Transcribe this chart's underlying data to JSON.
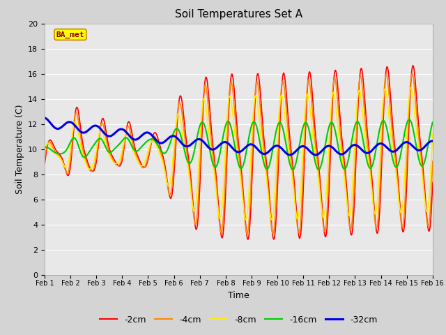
{
  "title": "Soil Temperatures Set A",
  "xlabel": "Time",
  "ylabel": "Soil Temperature (C)",
  "ylim": [
    0,
    20
  ],
  "xlim": [
    0,
    15
  ],
  "fig_facecolor": "#d4d4d4",
  "plot_facecolor": "#e8e8e8",
  "annotation_text": "BA_met",
  "annotation_bg": "#ffff00",
  "annotation_border": "#cc8800",
  "annotation_text_color": "#8b0000",
  "legend_labels": [
    "-2cm",
    "-4cm",
    "-8cm",
    "-16cm",
    "-32cm"
  ],
  "line_colors": [
    "#ff0000",
    "#ff8800",
    "#ffee00",
    "#00cc00",
    "#0000ee"
  ],
  "line_widths": [
    1.2,
    1.2,
    1.2,
    1.5,
    2.2
  ],
  "xtick_labels": [
    "Feb 1",
    "Feb 2",
    "Feb 3",
    "Feb 4",
    "Feb 5",
    "Feb 6",
    "Feb 7",
    "Feb 8",
    "Feb 9",
    "Feb 10",
    "Feb 11",
    "Feb 12",
    "Feb 13",
    "Feb 14",
    "Feb 15",
    "Feb 16"
  ],
  "xtick_positions": [
    0,
    1,
    2,
    3,
    4,
    5,
    6,
    7,
    8,
    9,
    10,
    11,
    12,
    13,
    14,
    15
  ],
  "ytick_positions": [
    0,
    2,
    4,
    6,
    8,
    10,
    12,
    14,
    16,
    18,
    20
  ],
  "grid_color": "#ffffff",
  "title_fontsize": 11,
  "label_fontsize": 9,
  "tick_fontsize": 8,
  "legend_fontsize": 9
}
